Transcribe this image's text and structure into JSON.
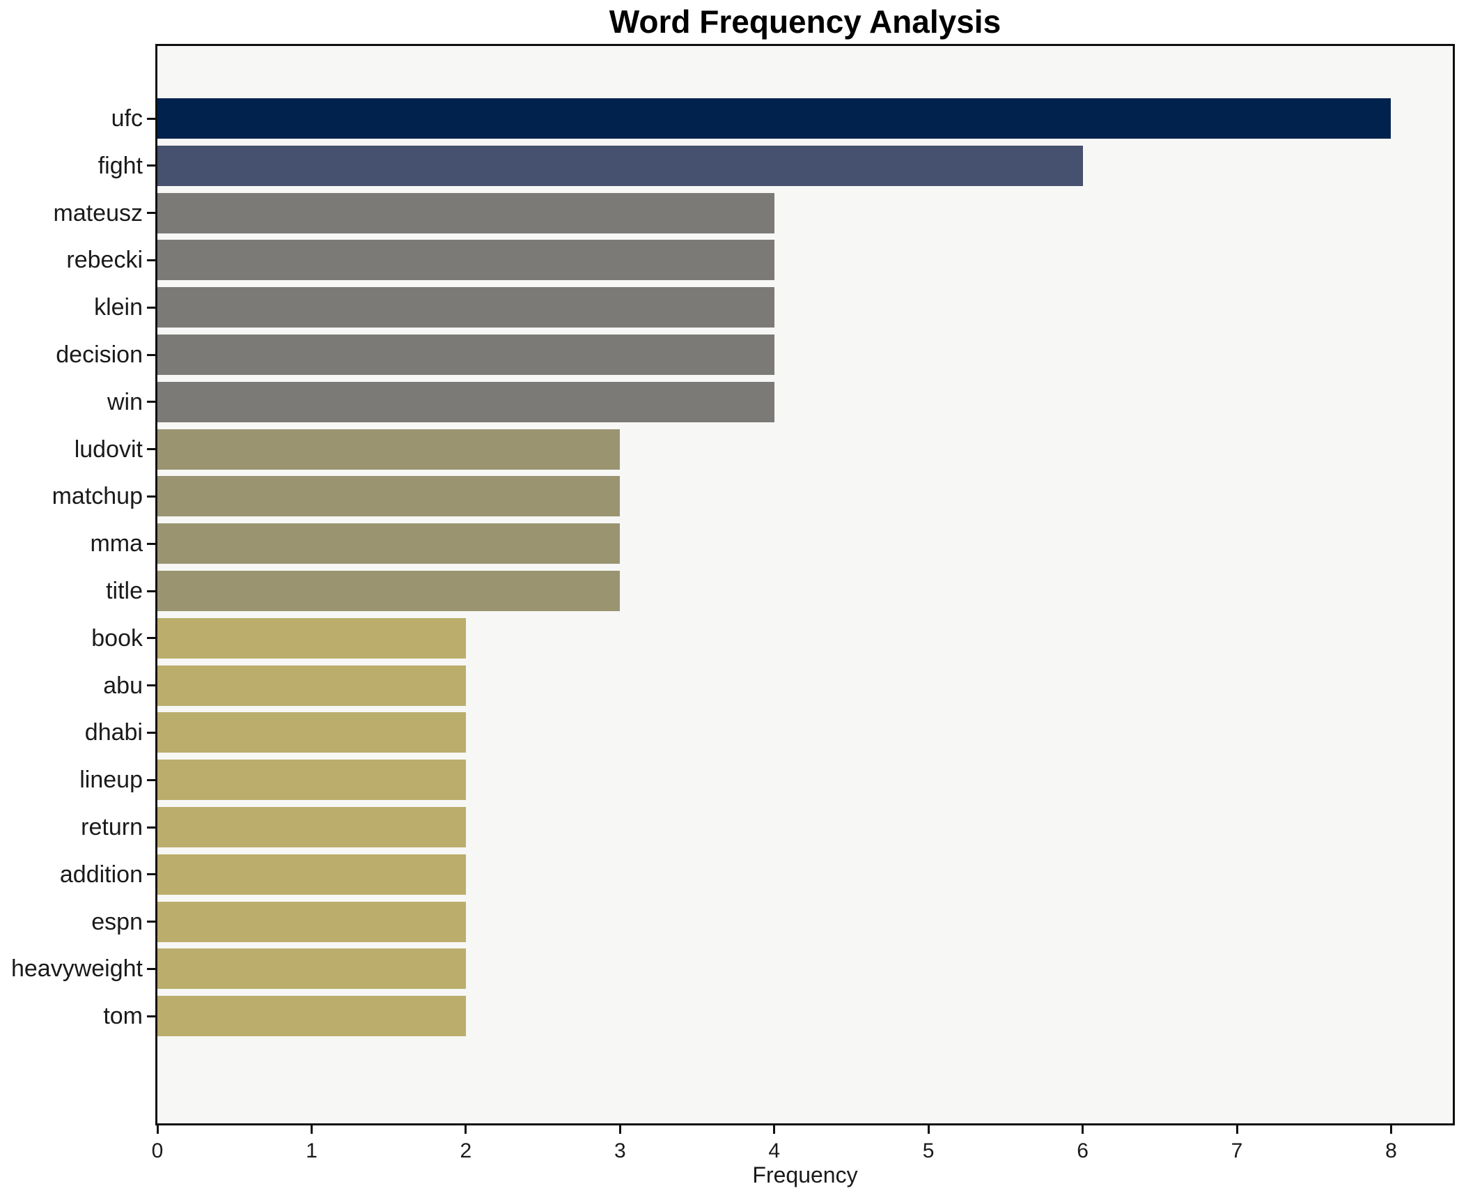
{
  "chart_data": {
    "type": "bar",
    "orientation": "horizontal",
    "title": "Word Frequency Analysis",
    "xlabel": "Frequency",
    "ylabel": "",
    "categories": [
      "ufc",
      "fight",
      "mateusz",
      "rebecki",
      "klein",
      "decision",
      "win",
      "ludovit",
      "matchup",
      "mma",
      "title",
      "book",
      "abu",
      "dhabi",
      "lineup",
      "return",
      "addition",
      "espn",
      "heavyweight",
      "tom"
    ],
    "values": [
      8,
      6,
      4,
      4,
      4,
      4,
      4,
      3,
      3,
      3,
      3,
      2,
      2,
      2,
      2,
      2,
      2,
      2,
      2,
      2
    ],
    "bar_colors": [
      "#01224d",
      "#45516e",
      "#7b7a76",
      "#7b7a76",
      "#7b7a76",
      "#7b7a76",
      "#7b7a76",
      "#9a9471",
      "#9a9471",
      "#9a9471",
      "#9a9471",
      "#bbad6c",
      "#bbad6c",
      "#bbad6c",
      "#bbad6c",
      "#bbad6c",
      "#bbad6c",
      "#bbad6c",
      "#bbad6c",
      "#bbad6c"
    ],
    "xticks": [
      0,
      1,
      2,
      3,
      4,
      5,
      6,
      7,
      8
    ],
    "xlim": [
      0,
      8.4
    ],
    "grid": false,
    "legend": null,
    "plot_background": "#f7f7f6",
    "figure_background": "#ffffff",
    "spine_color": "#0f0f0f",
    "text_color": "#1a1a1a"
  }
}
